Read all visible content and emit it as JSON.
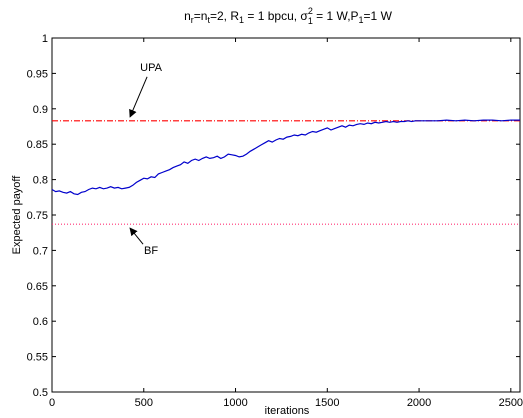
{
  "chart_data": {
    "type": "line",
    "title": {
      "p1": "n",
      "s1": "r",
      "p2": "=n",
      "s2": "t",
      "p3": "=2, R",
      "s3": "1",
      "p4": " = 1 bpcu, σ",
      "s4sup": "2",
      "s4sub": "1",
      "p5": " = 1 W,P",
      "s5": "1",
      "p6": "=1 W"
    },
    "xlabel": "iterations",
    "ylabel": "Expected payoff",
    "xlim": [
      0,
      2550
    ],
    "ylim": [
      0.5,
      1
    ],
    "x_ticks": [
      "0",
      "500",
      "1000",
      "1500",
      "2000",
      "2500"
    ],
    "y_ticks": [
      "0.5",
      "0.55",
      "0.6",
      "0.65",
      "0.7",
      "0.75",
      "0.8",
      "0.85",
      "0.9",
      "0.95",
      "1"
    ],
    "grid": false,
    "reference_lines": [
      {
        "name": "UPA",
        "y": 0.883,
        "style": "dash-dot",
        "color": "#ff0000"
      },
      {
        "name": "BF",
        "y": 0.737,
        "style": "dotted",
        "color": "#ff3377"
      }
    ],
    "annotations": [
      {
        "text": "UPA",
        "target_x": 420,
        "target_y": 0.883
      },
      {
        "text": "BF",
        "target_x": 420,
        "target_y": 0.737
      }
    ],
    "series": [
      {
        "color": "#0000cc",
        "points": [
          [
            0,
            0.786
          ],
          [
            20,
            0.783
          ],
          [
            40,
            0.784
          ],
          [
            60,
            0.782
          ],
          [
            80,
            0.781
          ],
          [
            100,
            0.783
          ],
          [
            120,
            0.78
          ],
          [
            140,
            0.779
          ],
          [
            160,
            0.782
          ],
          [
            180,
            0.783
          ],
          [
            200,
            0.786
          ],
          [
            220,
            0.788
          ],
          [
            240,
            0.787
          ],
          [
            260,
            0.789
          ],
          [
            280,
            0.787
          ],
          [
            300,
            0.788
          ],
          [
            320,
            0.79
          ],
          [
            340,
            0.788
          ],
          [
            360,
            0.789
          ],
          [
            380,
            0.787
          ],
          [
            400,
            0.788
          ],
          [
            420,
            0.789
          ],
          [
            440,
            0.792
          ],
          [
            460,
            0.796
          ],
          [
            480,
            0.799
          ],
          [
            500,
            0.802
          ],
          [
            520,
            0.801
          ],
          [
            540,
            0.804
          ],
          [
            560,
            0.803
          ],
          [
            580,
            0.808
          ],
          [
            600,
            0.81
          ],
          [
            620,
            0.812
          ],
          [
            640,
            0.814
          ],
          [
            660,
            0.817
          ],
          [
            680,
            0.819
          ],
          [
            700,
            0.821
          ],
          [
            720,
            0.825
          ],
          [
            740,
            0.823
          ],
          [
            760,
            0.827
          ],
          [
            780,
            0.829
          ],
          [
            800,
            0.827
          ],
          [
            820,
            0.83
          ],
          [
            840,
            0.832
          ],
          [
            860,
            0.83
          ],
          [
            880,
            0.831
          ],
          [
            900,
            0.833
          ],
          [
            920,
            0.83
          ],
          [
            940,
            0.832
          ],
          [
            960,
            0.836
          ],
          [
            980,
            0.835
          ],
          [
            1000,
            0.834
          ],
          [
            1020,
            0.832
          ],
          [
            1040,
            0.833
          ],
          [
            1060,
            0.836
          ],
          [
            1080,
            0.84
          ],
          [
            1100,
            0.843
          ],
          [
            1120,
            0.846
          ],
          [
            1140,
            0.849
          ],
          [
            1160,
            0.852
          ],
          [
            1180,
            0.855
          ],
          [
            1200,
            0.853
          ],
          [
            1220,
            0.856
          ],
          [
            1240,
            0.858
          ],
          [
            1260,
            0.857
          ],
          [
            1280,
            0.86
          ],
          [
            1300,
            0.861
          ],
          [
            1320,
            0.863
          ],
          [
            1340,
            0.862
          ],
          [
            1360,
            0.864
          ],
          [
            1380,
            0.863
          ],
          [
            1400,
            0.866
          ],
          [
            1420,
            0.868
          ],
          [
            1440,
            0.867
          ],
          [
            1460,
            0.869
          ],
          [
            1480,
            0.871
          ],
          [
            1500,
            0.873
          ],
          [
            1520,
            0.87
          ],
          [
            1540,
            0.872
          ],
          [
            1560,
            0.874
          ],
          [
            1580,
            0.876
          ],
          [
            1600,
            0.874
          ],
          [
            1620,
            0.877
          ],
          [
            1640,
            0.876
          ],
          [
            1660,
            0.878
          ],
          [
            1680,
            0.879
          ],
          [
            1700,
            0.878
          ],
          [
            1720,
            0.88
          ],
          [
            1740,
            0.879
          ],
          [
            1760,
            0.881
          ],
          [
            1780,
            0.88
          ],
          [
            1800,
            0.881
          ],
          [
            1820,
            0.882
          ],
          [
            1840,
            0.881
          ],
          [
            1860,
            0.882
          ],
          [
            1880,
            0.881
          ],
          [
            1900,
            0.882
          ],
          [
            1920,
            0.882
          ],
          [
            1940,
            0.883
          ],
          [
            1960,
            0.882
          ],
          [
            1980,
            0.883
          ],
          [
            2000,
            0.883
          ],
          [
            2050,
            0.883
          ],
          [
            2100,
            0.883
          ],
          [
            2150,
            0.884
          ],
          [
            2200,
            0.883
          ],
          [
            2250,
            0.884
          ],
          [
            2300,
            0.883
          ],
          [
            2350,
            0.884
          ],
          [
            2400,
            0.884
          ],
          [
            2450,
            0.883
          ],
          [
            2500,
            0.884
          ],
          [
            2550,
            0.884
          ]
        ]
      }
    ]
  }
}
